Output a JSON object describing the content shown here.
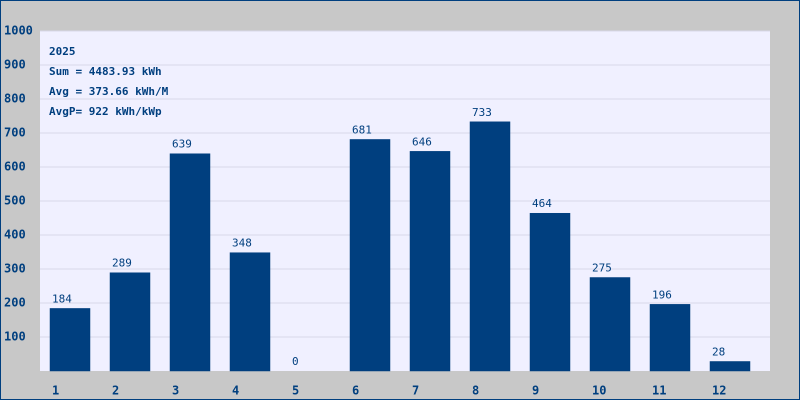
{
  "chart_data": {
    "type": "bar",
    "categories": [
      "1",
      "2",
      "3",
      "4",
      "5",
      "6",
      "7",
      "8",
      "9",
      "10",
      "11",
      "12"
    ],
    "values": [
      184,
      289,
      639,
      348,
      0,
      681,
      646,
      733,
      464,
      275,
      196,
      28
    ],
    "color": "#003f7f",
    "ylim": [
      0,
      1000
    ],
    "yticks": [
      100,
      200,
      300,
      400,
      500,
      600,
      700,
      800,
      900,
      1000
    ],
    "grid": true,
    "annotations": [
      "2025",
      "Sum = 4483.93 kWh",
      "Avg = 373.66 kWh/M",
      "AvgP= 922 kWh/kWp"
    ]
  }
}
